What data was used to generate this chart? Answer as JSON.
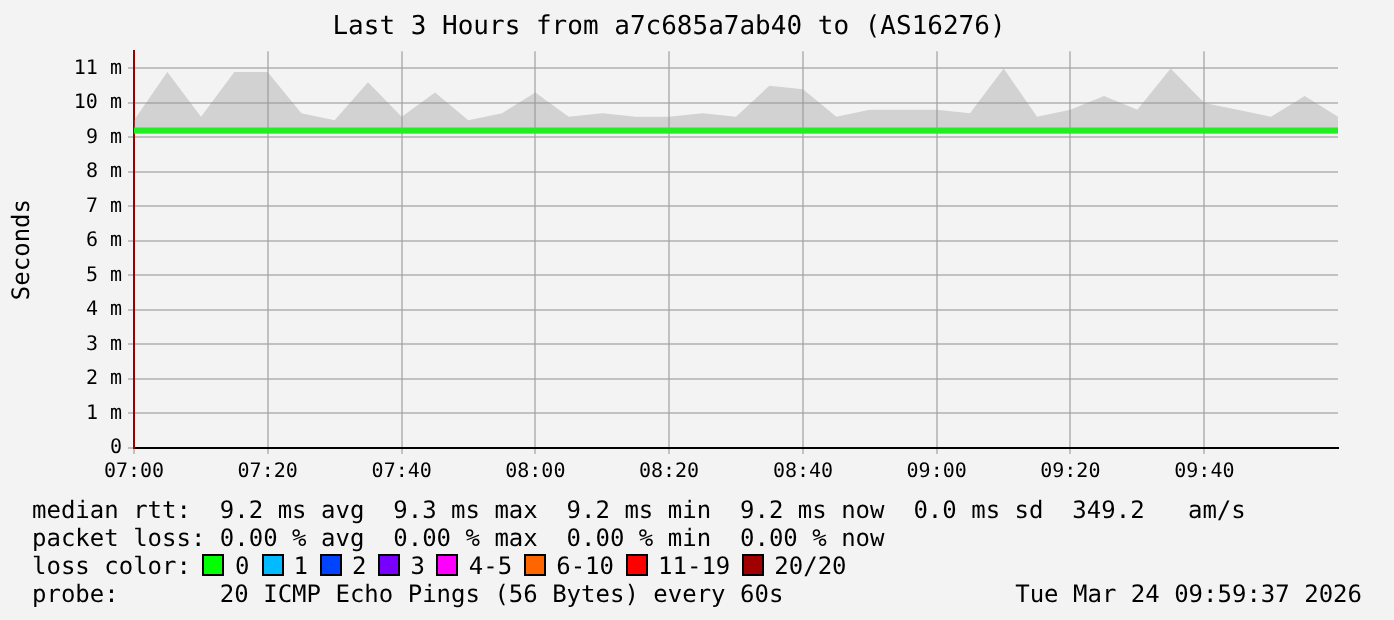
{
  "chart_data": {
    "type": "line",
    "title": "Last 3 Hours from a7c685a7ab40 to (AS16276)",
    "ylabel": "Seconds",
    "x": [
      7,
      7.083,
      7.167,
      7.25,
      7.333,
      7.417,
      7.5,
      7.583,
      7.667,
      7.75,
      7.833,
      7.917,
      8,
      8.083,
      8.167,
      8.25,
      8.333,
      8.417,
      8.5,
      8.583,
      8.667,
      8.75,
      8.833,
      8.917,
      9,
      9.083,
      9.167,
      9.25,
      9.333,
      9.417,
      9.5,
      9.583,
      9.667,
      9.75,
      9.833,
      9.917,
      10
    ],
    "series": [
      {
        "color": "#22ee22",
        "values": [
          9.2,
          9.2,
          9.2,
          9.2,
          9.2,
          9.2,
          9.2,
          9.2,
          9.2,
          9.2,
          9.2,
          9.2,
          9.2,
          9.2,
          9.2,
          9.2,
          9.2,
          9.2,
          9.2,
          9.2,
          9.2,
          9.2,
          9.2,
          9.2,
          9.2,
          9.2,
          9.2,
          9.2,
          9.2,
          9.2,
          9.2,
          9.2,
          9.2,
          9.2,
          9.2,
          9.2,
          9.2
        ],
        "lower": [
          9.1,
          9.1,
          9.1,
          9.1,
          9.1,
          9.1,
          9.1,
          9.1,
          9.1,
          9.1,
          9.1,
          9.1,
          9.1,
          9.1,
          9.1,
          9.1,
          9.1,
          9.1,
          9.1,
          9.1,
          9.1,
          9.1,
          9.1,
          9.1,
          9.1,
          9.1,
          9.1,
          9.1,
          9.1,
          9.1,
          9.1,
          9.1,
          9.1,
          9.1,
          9.1,
          9.1,
          9.1
        ],
        "upper": [
          9.5,
          10.9,
          9.6,
          10.9,
          10.9,
          9.7,
          9.5,
          10.6,
          9.6,
          10.3,
          9.5,
          9.7,
          10.3,
          9.6,
          9.7,
          9.6,
          9.6,
          9.7,
          9.6,
          10.5,
          10.4,
          9.6,
          9.8,
          9.8,
          9.8,
          9.7,
          11,
          9.6,
          9.8,
          10.2,
          9.8,
          11,
          10,
          9.8,
          9.6,
          10.2,
          9.6
        ]
      }
    ],
    "xlim": [
      7,
      10
    ],
    "xticks": [
      {
        "value": 7,
        "label": "07:00"
      },
      {
        "value": 7.333,
        "label": "07:20"
      },
      {
        "value": 7.667,
        "label": "07:40"
      },
      {
        "value": 8,
        "label": "08:00"
      },
      {
        "value": 8.333,
        "label": "08:20"
      },
      {
        "value": 8.667,
        "label": "08:40"
      },
      {
        "value": 9,
        "label": "09:00"
      },
      {
        "value": 9.333,
        "label": "09:20"
      },
      {
        "value": 9.667,
        "label": "09:40"
      }
    ],
    "ylim": [
      0,
      11.5
    ],
    "yticks": [
      0,
      {
        "value": 1,
        "label": "1 m"
      },
      {
        "value": 2,
        "label": "2 m"
      },
      {
        "value": 3,
        "label": "3 m"
      },
      {
        "value": 4,
        "label": "4 m"
      },
      {
        "value": 5,
        "label": "5 m"
      },
      {
        "value": 6,
        "label": "6 m"
      },
      {
        "value": 7,
        "label": "7 m"
      },
      {
        "value": 8,
        "label": "8 m"
      },
      {
        "value": 9,
        "label": "9 m"
      },
      {
        "value": 10,
        "label": "10 m"
      },
      {
        "value": 11,
        "label": "11 m"
      }
    ],
    "grid": true,
    "legend": false,
    "marker": "none",
    "line_style": "solid",
    "annotations": [
      "median rtt:  9.2 ms avg  9.3 ms max  9.2 ms min  9.2 ms now  0.0 ms sd  349.2   am/s",
      "packet loss: 0.00 % avg  0.00 % max  0.00 % min  0.00 % now",
      "loss color:",
      "0",
      "1",
      "2",
      "3",
      "4-5",
      "6-10",
      "11-19",
      "20/20",
      "probe:       20 ICMP Echo Pings (56 Bytes) every 60s",
      "Tue Mar 24 09:59:37 2026"
    ]
  }
}
